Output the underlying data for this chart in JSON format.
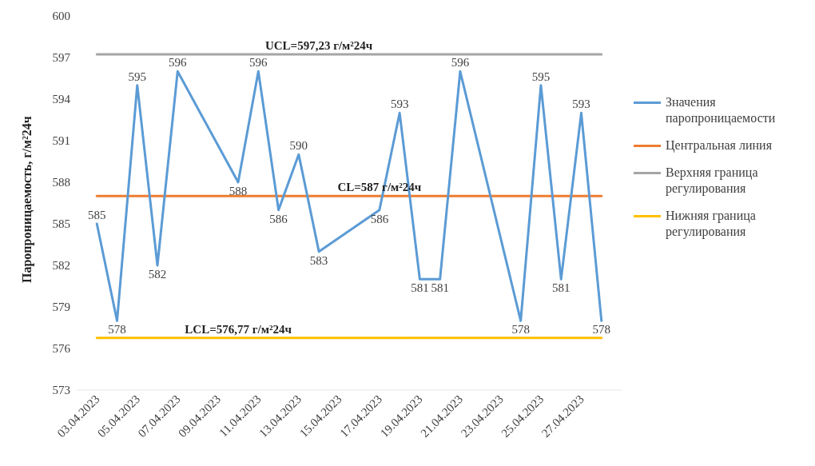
{
  "chart_data": {
    "type": "line",
    "ylabel": "Паропроницаемость,  г/м²24ч",
    "x": [
      "2023-04-03",
      "2023-04-04",
      "2023-04-05",
      "2023-04-06",
      "2023-04-07",
      "2023-04-10",
      "2023-04-11",
      "2023-04-12",
      "2023-04-13",
      "2023-04-14",
      "2023-04-17",
      "2023-04-18",
      "2023-04-19",
      "2023-04-20",
      "2023-04-21",
      "2023-04-24",
      "2023-04-25",
      "2023-04-26",
      "2023-04-27",
      "2023-04-28"
    ],
    "series": [
      {
        "name": "Значения паропроницаемости",
        "color": "#5b9bd5",
        "values": [
          585,
          578,
          595,
          582,
          596,
          588,
          596,
          586,
          590,
          583,
          586,
          593,
          581,
          581,
          596,
          578,
          595,
          581,
          593,
          578
        ],
        "value_labels": [
          "585",
          "578",
          "595",
          "582",
          "596",
          "588",
          "596",
          "586",
          "590",
          "583",
          "586",
          "593",
          "581",
          "581",
          "596",
          "578",
          "595",
          "581",
          "593",
          "578"
        ]
      },
      {
        "name": "Центральная линия",
        "color": "#ed7d31",
        "x": [
          "2023-04-03",
          "2023-04-28"
        ],
        "values": [
          587,
          587
        ]
      },
      {
        "name": "Верхняя граница регулирования",
        "color": "#a5a5a5",
        "x": [
          "2023-04-03",
          "2023-04-28"
        ],
        "values": [
          597.23,
          597.23
        ]
      },
      {
        "name": "Нижняя граница регулирования",
        "color": "#ffc000",
        "x": [
          "2023-04-03",
          "2023-04-28"
        ],
        "values": [
          576.77,
          576.77
        ]
      }
    ],
    "annotations": [
      {
        "text": "UCL=597,23 г/м²24ч",
        "x": "2023-04-14",
        "y": 597.23
      },
      {
        "text": "CL=587 г/м²24ч",
        "x": "2023-04-17",
        "y": 587
      },
      {
        "text": "LCL=576,77 г/м²24ч",
        "x": "2023-04-10",
        "y": 576.77
      }
    ],
    "xlim": [
      "2023-04-02",
      "2023-04-29"
    ],
    "xticks": [
      {
        "value": "2023-04-03",
        "label": "03.04.2023"
      },
      {
        "value": "2023-04-05",
        "label": "05.04.2023"
      },
      {
        "value": "2023-04-07",
        "label": "07.04.2023"
      },
      {
        "value": "2023-04-09",
        "label": "09.04.2023"
      },
      {
        "value": "2023-04-11",
        "label": "11.04.2023"
      },
      {
        "value": "2023-04-13",
        "label": "13.04.2023"
      },
      {
        "value": "2023-04-15",
        "label": "15.04.2023"
      },
      {
        "value": "2023-04-17",
        "label": "17.04.2023"
      },
      {
        "value": "2023-04-19",
        "label": "19.04.2023"
      },
      {
        "value": "2023-04-21",
        "label": "21.04.2023"
      },
      {
        "value": "2023-04-23",
        "label": "23.04.2023"
      },
      {
        "value": "2023-04-25",
        "label": "25.04.2023"
      },
      {
        "value": "2023-04-27",
        "label": "27.04.2023"
      }
    ],
    "ylim": [
      573,
      600
    ],
    "yticks": [
      573,
      576,
      579,
      582,
      585,
      588,
      591,
      594,
      597,
      600
    ],
    "legend": "right",
    "marker": "none",
    "line_style": "solid",
    "grid": false
  }
}
